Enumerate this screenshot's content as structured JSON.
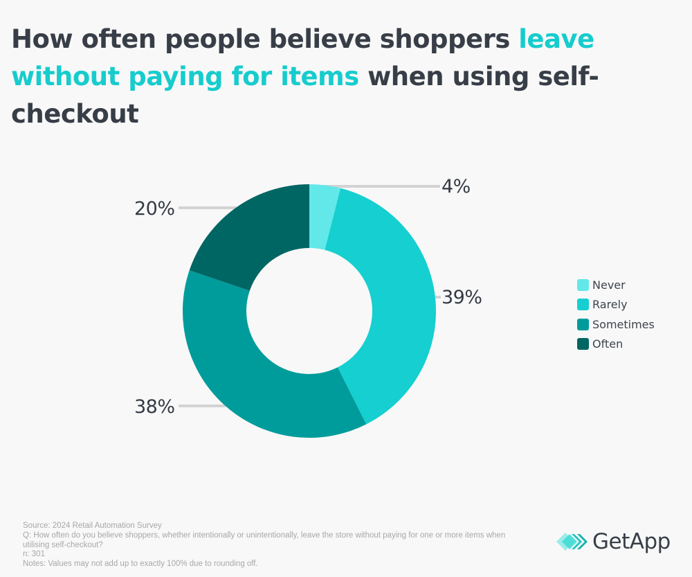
{
  "title": {
    "part1": "How often people believe shoppers ",
    "highlight": "leave without paying for items",
    "part2": " when using self-checkout"
  },
  "chart_data": {
    "type": "pie",
    "subtype": "donut",
    "title": "How often people believe shoppers leave without paying for items when using self-checkout",
    "categories": [
      "Never",
      "Rarely",
      "Sometimes",
      "Often"
    ],
    "values": [
      4,
      39,
      38,
      20
    ],
    "unit": "%",
    "labels": [
      "4%",
      "39%",
      "38%",
      "20%"
    ],
    "colors": [
      "#62e8e8",
      "#15cfd0",
      "#009c9b",
      "#006663"
    ],
    "start_angle": "12 o'clock, clockwise",
    "legend_position": "right"
  },
  "labels": {
    "never": "4%",
    "rarely": "39%",
    "sometimes": "38%",
    "often": "20%"
  },
  "legend": [
    {
      "label": "Never",
      "color": "#62e8e8"
    },
    {
      "label": "Rarely",
      "color": "#15cfd0"
    },
    {
      "label": "Sometimes",
      "color": "#009c9b"
    },
    {
      "label": "Often",
      "color": "#006663"
    }
  ],
  "footer": {
    "source": "Source: 2024 Retail Automation Survey",
    "question": "Q: How often do you believe shoppers, whether intentionally or unintentionally, leave the store without paying for one or more items when utilising self-checkout?",
    "n": "n: 301",
    "notes": "Notes: Values may not add up to exactly 100% due to rounding off."
  },
  "logo": {
    "text": "GetApp",
    "icon": "getapp-chevrons-icon"
  }
}
